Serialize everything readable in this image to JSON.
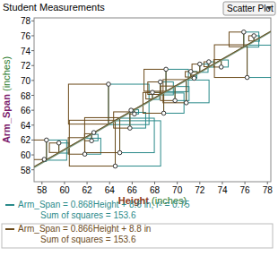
{
  "chart_data": {
    "type": "scatter",
    "title": "Student Measurements",
    "menu": "Scatter Plot",
    "x_label": "Height (inches)",
    "y_label": "Arm_Span (inches)",
    "x": [
      58.4,
      59.5,
      58.2,
      61.8,
      62.4,
      62.6,
      63.9,
      64.5,
      64.9,
      65.8,
      65.9,
      66.2,
      67.8,
      68.5,
      69.0,
      68.8,
      69.8,
      70.8,
      71.2,
      71.5,
      72.0,
      72.8,
      73.9,
      75.9,
      76.2,
      76.8
    ],
    "values": [
      62.0,
      61.6,
      59.4,
      60.1,
      61.9,
      63.0,
      69.5,
      58.5,
      60.3,
      63.6,
      66.0,
      65.5,
      68.4,
      69.8,
      71.5,
      65.6,
      67.3,
      67.0,
      71.2,
      70.3,
      72.2,
      72.5,
      71.8,
      76.5,
      70.4,
      76.0
    ],
    "color": "#333333",
    "xlim": [
      57.3,
      78.3
    ],
    "ylim": [
      56.4,
      78.4
    ],
    "xticks": [
      58,
      60,
      62,
      64,
      66,
      68,
      70,
      72,
      74,
      76,
      78
    ],
    "yticks": [
      58,
      60,
      62,
      64,
      66,
      68,
      70,
      72,
      74,
      76,
      78
    ],
    "lines": [
      {
        "slope": 0.868,
        "intercept": 8.6,
        "color": "#2a8a8a",
        "equation": "Arm_Span = 0.868Height + 8.6 in; r² = 0.75",
        "sum": "Sum of squares = 153.6"
      },
      {
        "slope": 0.866,
        "intercept": 8.8,
        "color": "#6b4a1a",
        "equation": "Arm_Span = 0.866Height + 8.8 in",
        "sum": "Sum of squares = 153.6"
      }
    ]
  }
}
